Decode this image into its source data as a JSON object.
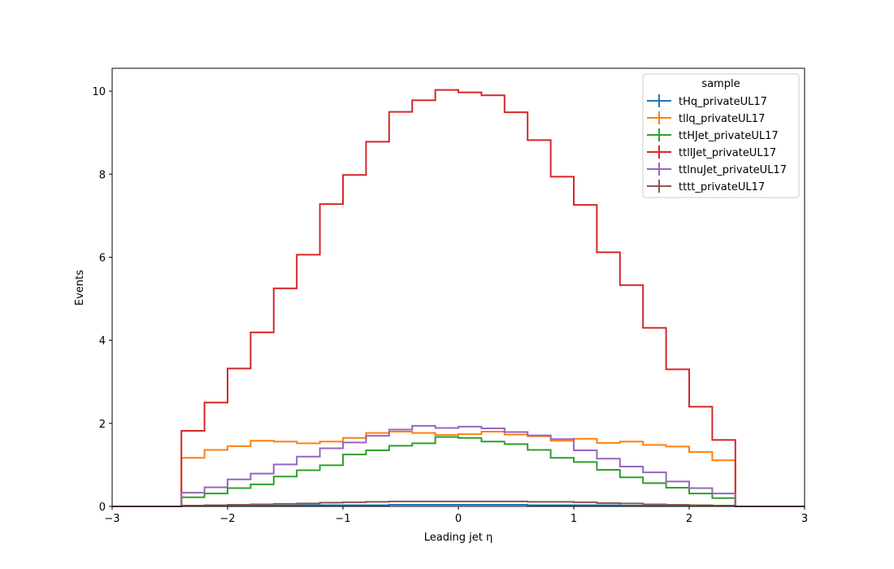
{
  "chart_data": {
    "type": "line",
    "drawstyle": "histogram-step",
    "title": "",
    "xlabel": "Leading jet  η",
    "ylabel": "Events",
    "xlim": [
      -3,
      3
    ],
    "ylim": [
      0,
      10.55
    ],
    "x_ticks": [
      -3,
      -2,
      -1,
      0,
      1,
      2,
      3
    ],
    "x_tick_labels": [
      "−3",
      "−2",
      "−1",
      "0",
      "1",
      "2",
      "3"
    ],
    "y_ticks": [
      0,
      2,
      4,
      6,
      8,
      10
    ],
    "y_tick_labels": [
      "0",
      "2",
      "4",
      "6",
      "8",
      "10"
    ],
    "grid": false,
    "legend": {
      "title": "sample",
      "placement": "top-right"
    },
    "bin_edges": [
      -3.0,
      -2.8,
      -2.6,
      -2.4,
      -2.2,
      -2.0,
      -1.8,
      -1.6,
      -1.4,
      -1.2,
      -1.0,
      -0.8,
      -0.6,
      -0.4,
      -0.2,
      0.0,
      0.2,
      0.4,
      0.6,
      0.8,
      1.0,
      1.2,
      1.4,
      1.6,
      1.8,
      2.0,
      2.2,
      2.4,
      2.6,
      2.8,
      3.0
    ],
    "series": [
      {
        "name": "tHq_privateUL17",
        "color": "#1f77b4",
        "values": [
          0,
          0,
          0,
          0.01,
          0.01,
          0.02,
          0.02,
          0.02,
          0.03,
          0.03,
          0.03,
          0.03,
          0.04,
          0.04,
          0.04,
          0.04,
          0.04,
          0.04,
          0.03,
          0.03,
          0.03,
          0.03,
          0.02,
          0.02,
          0.02,
          0.02,
          0.01,
          0,
          0,
          0
        ]
      },
      {
        "name": "tllq_privateUL17",
        "color": "#ff7f0e",
        "values": [
          0,
          0,
          0,
          1.17,
          1.36,
          1.45,
          1.58,
          1.56,
          1.52,
          1.56,
          1.65,
          1.77,
          1.8,
          1.77,
          1.72,
          1.74,
          1.8,
          1.73,
          1.69,
          1.58,
          1.63,
          1.53,
          1.56,
          1.48,
          1.44,
          1.31,
          1.11,
          0,
          0,
          0
        ]
      },
      {
        "name": "ttHJet_privateUL17",
        "color": "#2ca02c",
        "values": [
          0,
          0,
          0,
          0.22,
          0.31,
          0.44,
          0.53,
          0.72,
          0.87,
          0.99,
          1.25,
          1.35,
          1.46,
          1.52,
          1.67,
          1.65,
          1.56,
          1.5,
          1.36,
          1.17,
          1.07,
          0.88,
          0.7,
          0.56,
          0.45,
          0.31,
          0.2,
          0,
          0,
          0
        ]
      },
      {
        "name": "ttllJet_privateUL17",
        "color": "#d62728",
        "values": [
          0,
          0,
          0,
          1.82,
          2.5,
          3.32,
          4.19,
          5.25,
          6.06,
          7.28,
          7.98,
          8.78,
          9.5,
          9.78,
          10.03,
          9.97,
          9.9,
          9.49,
          8.82,
          7.94,
          7.26,
          6.12,
          5.33,
          4.3,
          3.3,
          2.4,
          1.6,
          0,
          0,
          0
        ]
      },
      {
        "name": "ttlnuJet_privateUL17",
        "color": "#9467bd",
        "values": [
          0,
          0,
          0,
          0.33,
          0.46,
          0.65,
          0.79,
          1.01,
          1.2,
          1.4,
          1.54,
          1.7,
          1.85,
          1.94,
          1.89,
          1.92,
          1.88,
          1.79,
          1.71,
          1.62,
          1.35,
          1.15,
          0.96,
          0.82,
          0.6,
          0.44,
          0.31,
          0,
          0,
          0
        ]
      },
      {
        "name": "tttt_privateUL17",
        "color": "#8c564b",
        "values": [
          0,
          0,
          0,
          0.02,
          0.03,
          0.04,
          0.05,
          0.06,
          0.07,
          0.09,
          0.1,
          0.11,
          0.12,
          0.12,
          0.12,
          0.12,
          0.12,
          0.12,
          0.11,
          0.11,
          0.1,
          0.08,
          0.07,
          0.05,
          0.04,
          0.03,
          0.02,
          0,
          0,
          0
        ]
      }
    ]
  }
}
